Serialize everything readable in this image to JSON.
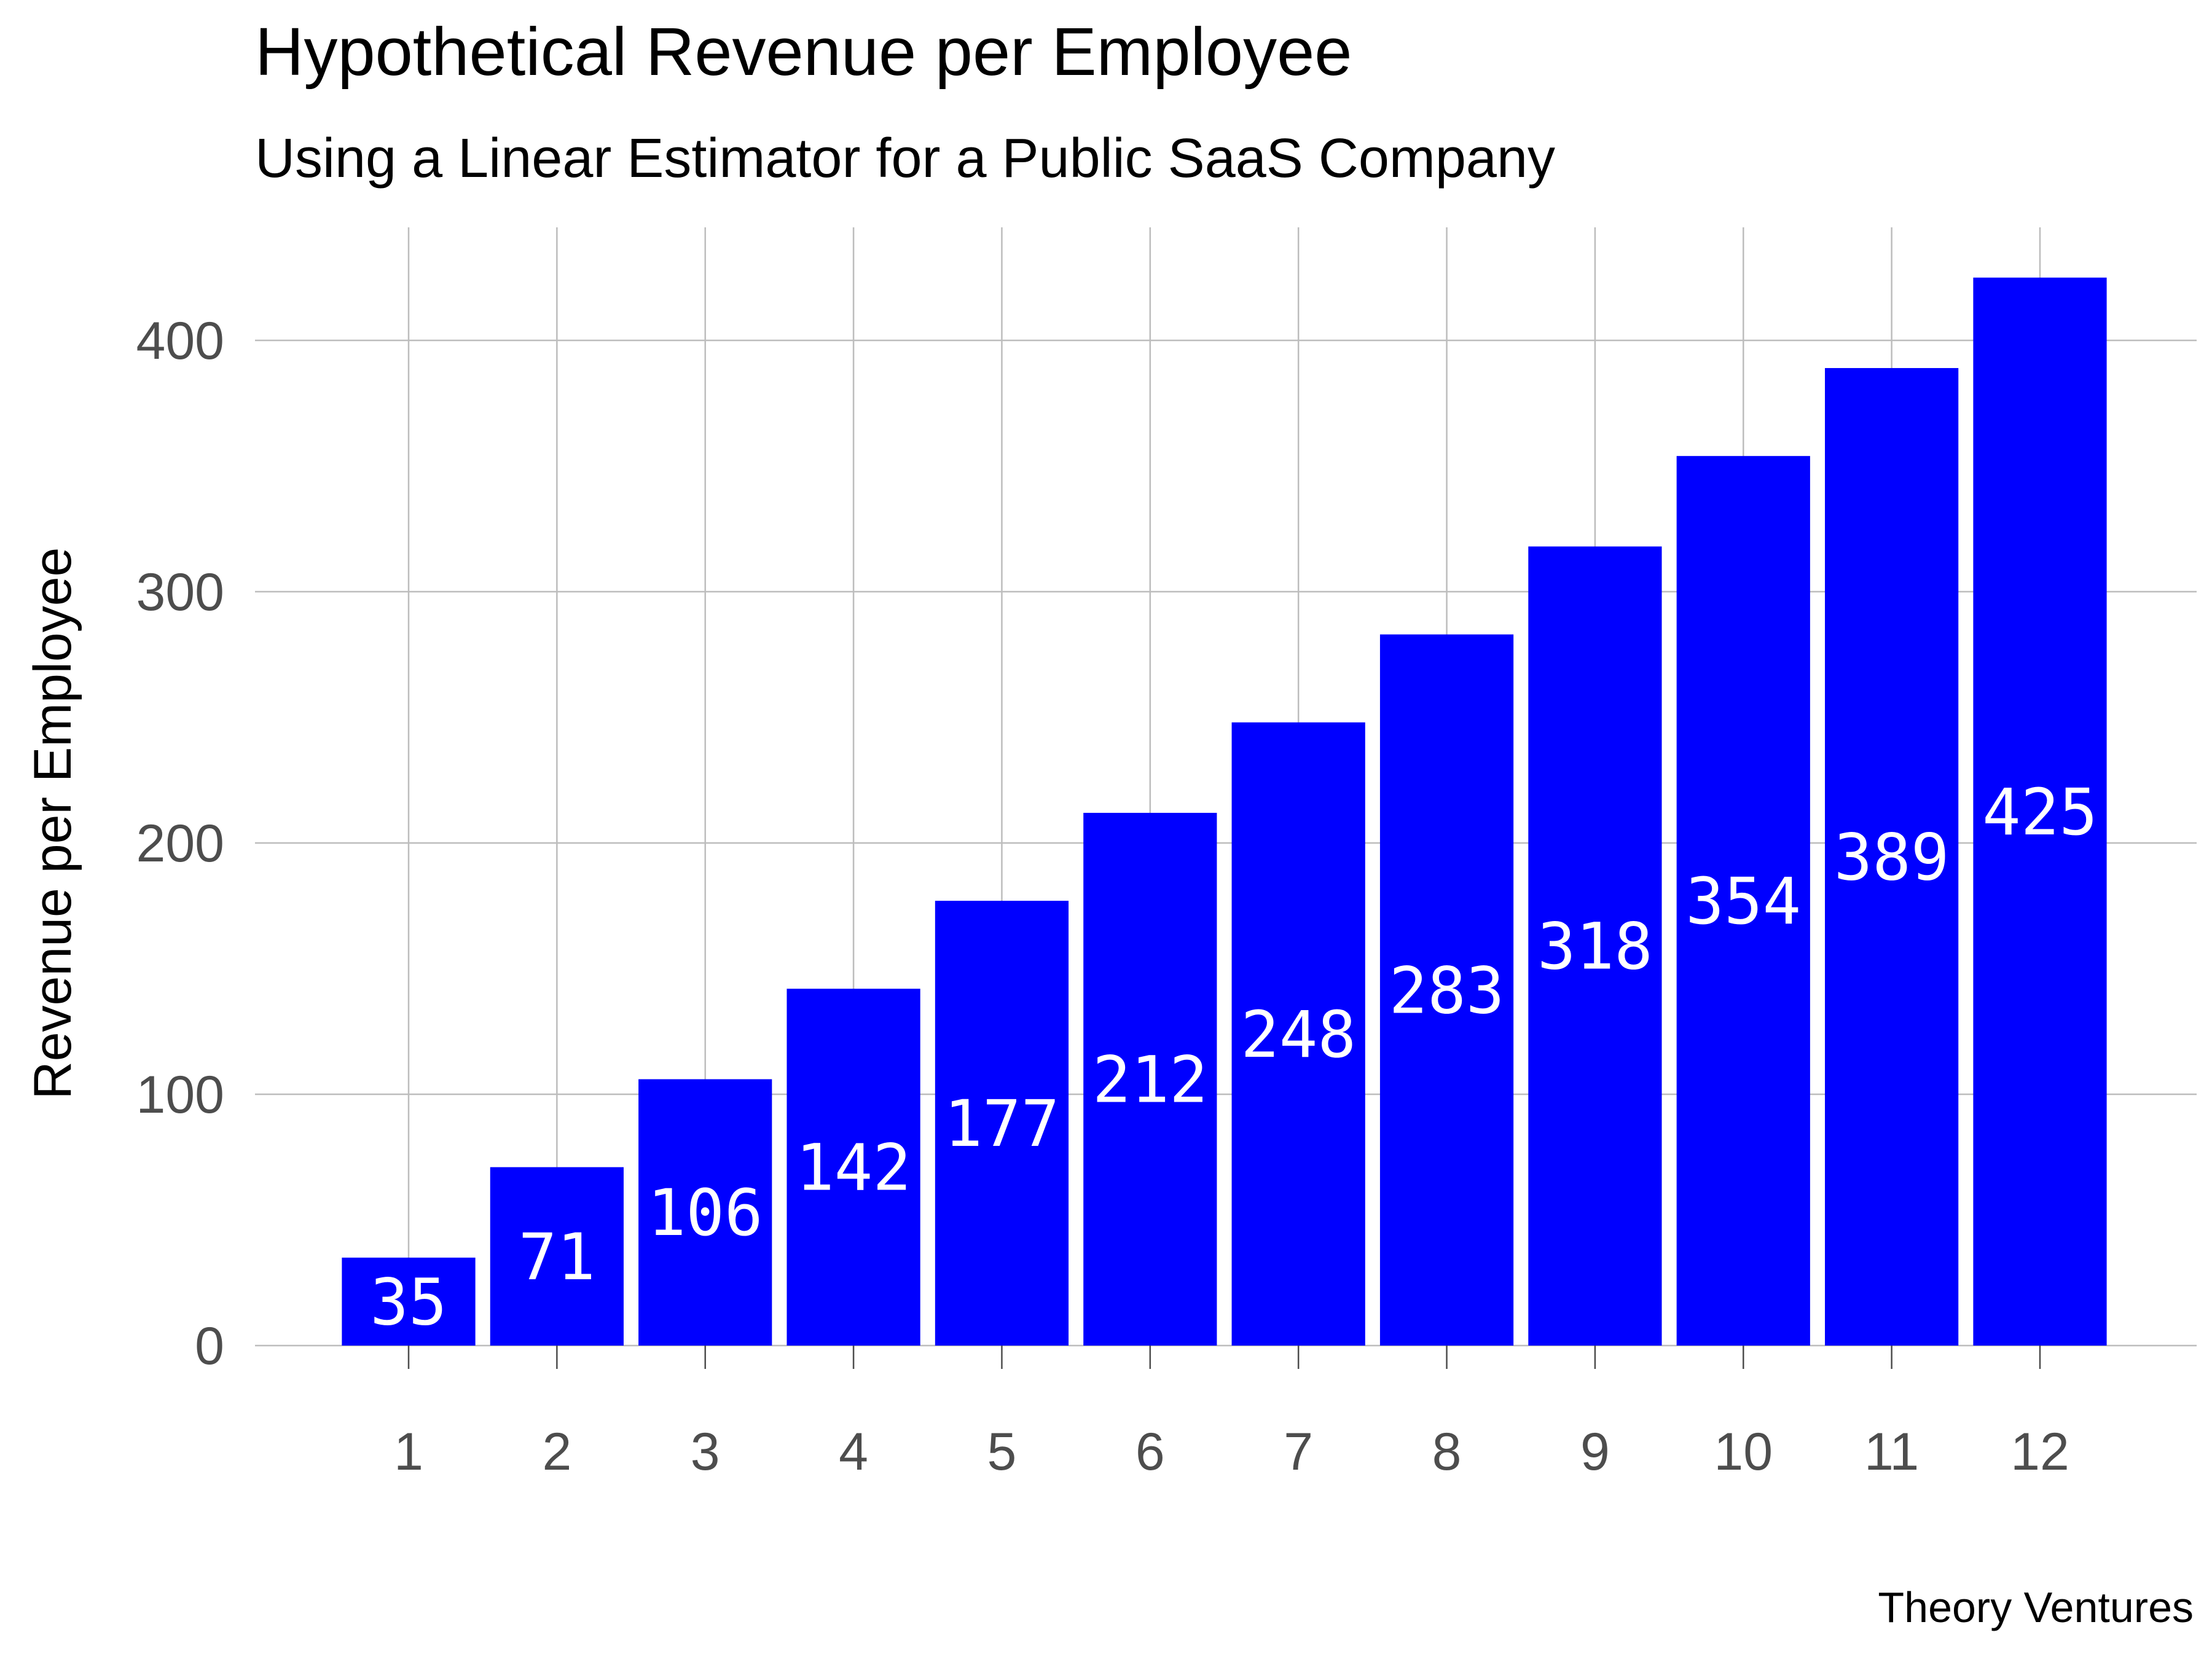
{
  "chart_data": {
    "type": "bar",
    "title": "Hypothetical Revenue per Employee",
    "subtitle": "Using a Linear Estimator for a Public SaaS Company",
    "xlabel": "",
    "ylabel": "Revenue per Employee",
    "categories": [
      "1",
      "2",
      "3",
      "4",
      "5",
      "6",
      "7",
      "8",
      "9",
      "10",
      "11",
      "12"
    ],
    "values": [
      35,
      71,
      106,
      142,
      177,
      212,
      248,
      283,
      318,
      354,
      389,
      425
    ],
    "data_labels": [
      "35",
      "71",
      "106",
      "142",
      "177",
      "212",
      "248",
      "283",
      "318",
      "354",
      "389",
      "425"
    ],
    "y_ticks": [
      0,
      100,
      200,
      300,
      400
    ],
    "y_tick_labels": [
      "0",
      "100",
      "200",
      "300",
      "400"
    ],
    "ylim": [
      0,
      445
    ],
    "bar_color": "#0000ff",
    "data_label_color": "#ffffff",
    "grid": true,
    "legend": "none",
    "caption": "Theory Ventures"
  }
}
